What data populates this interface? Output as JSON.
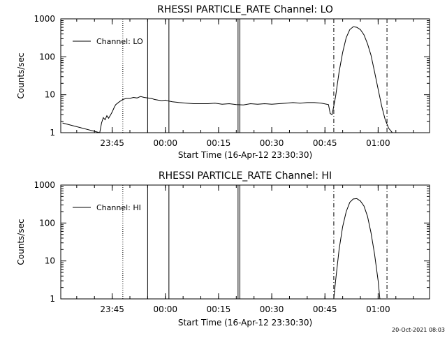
{
  "timestamp": "20-Oct-2021 08:03",
  "chart_data": [
    {
      "type": "line",
      "title": "RHESSI PARTICLE_RATE Channel: LO",
      "xlabel": "Start Time (16-Apr-12 23:30:30)",
      "ylabel": "Counts/sec",
      "yscale": "log",
      "ylim": [
        1,
        1000
      ],
      "xlim": [
        "23:30:30",
        "01:14:30"
      ],
      "x_ticks": [
        "23:45",
        "00:00",
        "00:15",
        "00:30",
        "00:45",
        "01:00"
      ],
      "y_ticks": [
        "1",
        "10",
        "100",
        "1000"
      ],
      "legend": {
        "position": "top-left",
        "entries": [
          "Channel: LO"
        ]
      },
      "series": [
        {
          "name": "Channel: LO",
          "x": [
            "23:31",
            "23:41:30",
            "23:42",
            "23:42:30",
            "23:43",
            "23:43:30",
            "23:44",
            "23:44:30",
            "23:45",
            "23:45:30",
            "23:46",
            "23:47",
            "23:48",
            "23:49",
            "23:50",
            "23:51",
            "23:52",
            "23:53",
            "23:54",
            "23:55",
            "23:56",
            "23:57",
            "23:58",
            "23:59",
            "00:00",
            "00:01",
            "00:02",
            "00:04",
            "00:06",
            "00:08",
            "00:10",
            "00:12",
            "00:14",
            "00:16",
            "00:18",
            "00:20",
            "00:22",
            "00:24",
            "00:26",
            "00:28",
            "00:30",
            "00:32",
            "00:34",
            "00:36",
            "00:38",
            "00:40",
            "00:42",
            "00:44",
            "00:46",
            "00:46:30",
            "00:47",
            "00:47:30",
            "00:48",
            "00:49",
            "00:50",
            "00:51",
            "00:52",
            "00:53",
            "00:54",
            "00:55",
            "00:56",
            "00:57",
            "00:58",
            "00:59",
            "01:00",
            "01:01",
            "01:02",
            "01:03",
            "01:04"
          ],
          "values": [
            1.8,
            1,
            1.8,
            2.5,
            2.2,
            2.8,
            2.4,
            2.9,
            3.5,
            4.5,
            5.5,
            6.5,
            7.5,
            8,
            8,
            8.5,
            8.2,
            9,
            8.5,
            8.2,
            8,
            7.5,
            7.2,
            7,
            7.2,
            6.8,
            6.5,
            6.2,
            6,
            5.8,
            5.8,
            5.8,
            6,
            5.6,
            5.8,
            5.5,
            5.4,
            5.8,
            5.6,
            5.8,
            5.6,
            5.8,
            6,
            6.2,
            6,
            6.2,
            6.2,
            6,
            5.5,
            3.2,
            3,
            5,
            9,
            40,
            130,
            320,
            520,
            620,
            600,
            520,
            380,
            220,
            110,
            40,
            14,
            5,
            2.2,
            1.3,
            1
          ]
        }
      ],
      "annotations": {
        "F": [
          "23:55",
          "00:01",
          "00:20:30",
          "00:21"
        ],
        "S": [
          "00:47:30",
          "01:02:30"
        ],
        "dotted": [
          "23:48"
        ]
      }
    },
    {
      "type": "line",
      "title": "RHESSI PARTICLE_RATE Channel: HI",
      "xlabel": "Start Time (16-Apr-12 23:30:30)",
      "ylabel": "Counts/sec",
      "yscale": "log",
      "ylim": [
        1,
        1000
      ],
      "xlim": [
        "23:30:30",
        "01:14:30"
      ],
      "x_ticks": [
        "23:45",
        "00:00",
        "00:15",
        "00:30",
        "00:45",
        "01:00"
      ],
      "y_ticks": [
        "1",
        "10",
        "100",
        "1000"
      ],
      "legend": {
        "position": "top-left",
        "entries": [
          "Channel: HI"
        ]
      },
      "series": [
        {
          "name": "Channel: HI",
          "x": [
            "00:47:30",
            "00:48",
            "00:49",
            "00:50",
            "00:51",
            "00:52",
            "00:53",
            "00:54",
            "00:55",
            "00:56",
            "00:57",
            "00:58",
            "00:59",
            "01:00",
            "01:00:30"
          ],
          "values": [
            1,
            3,
            20,
            80,
            200,
            350,
            430,
            440,
            380,
            280,
            150,
            55,
            15,
            3,
            1
          ]
        }
      ],
      "annotations": {
        "F": [
          "23:55",
          "00:01",
          "00:20:30",
          "00:21"
        ],
        "S": [
          "00:47:30",
          "01:02:30"
        ],
        "dotted": [
          "23:48"
        ]
      }
    }
  ]
}
